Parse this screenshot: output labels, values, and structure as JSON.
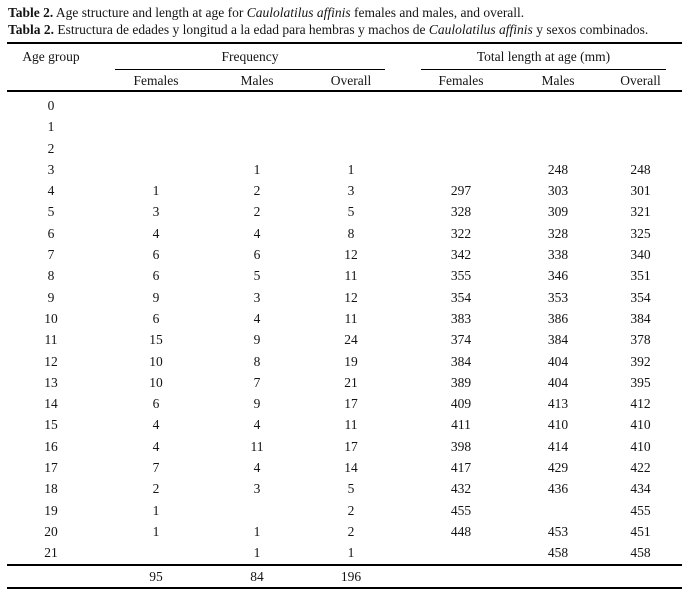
{
  "caption": {
    "en": {
      "label": "Table 2.",
      "before_species": " Age structure and length at age for ",
      "species": "Caulolatilus affinis",
      "after_species": " females and males, and overall."
    },
    "es": {
      "label": "Tabla 2.",
      "before_species": " Estructura de edades y longitud a la edad para hembras y machos de ",
      "species": "Caulolatilus affinis",
      "after_species": " y sexos combinados."
    }
  },
  "table": {
    "col_age_header": "Age group",
    "group_frequency": "Frequency",
    "group_length": "Total length at age (mm)",
    "subheaders": {
      "females": "Females",
      "males": "Males",
      "overall": "Overall"
    },
    "rows": [
      {
        "age": "0",
        "ff": "",
        "fm": "",
        "fo": "",
        "lf": "",
        "lm": "",
        "lo": ""
      },
      {
        "age": "1",
        "ff": "",
        "fm": "",
        "fo": "",
        "lf": "",
        "lm": "",
        "lo": ""
      },
      {
        "age": "2",
        "ff": "",
        "fm": "",
        "fo": "",
        "lf": "",
        "lm": "",
        "lo": ""
      },
      {
        "age": "3",
        "ff": "",
        "fm": "1",
        "fo": "1",
        "lf": "",
        "lm": "248",
        "lo": "248"
      },
      {
        "age": "4",
        "ff": "1",
        "fm": "2",
        "fo": "3",
        "lf": "297",
        "lm": "303",
        "lo": "301"
      },
      {
        "age": "5",
        "ff": "3",
        "fm": "2",
        "fo": "5",
        "lf": "328",
        "lm": "309",
        "lo": "321"
      },
      {
        "age": "6",
        "ff": "4",
        "fm": "4",
        "fo": "8",
        "lf": "322",
        "lm": "328",
        "lo": "325"
      },
      {
        "age": "7",
        "ff": "6",
        "fm": "6",
        "fo": "12",
        "lf": "342",
        "lm": "338",
        "lo": "340"
      },
      {
        "age": "8",
        "ff": "6",
        "fm": "5",
        "fo": "11",
        "lf": "355",
        "lm": "346",
        "lo": "351"
      },
      {
        "age": "9",
        "ff": "9",
        "fm": "3",
        "fo": "12",
        "lf": "354",
        "lm": "353",
        "lo": "354"
      },
      {
        "age": "10",
        "ff": "6",
        "fm": "4",
        "fo": "11",
        "lf": "383",
        "lm": "386",
        "lo": "384"
      },
      {
        "age": "11",
        "ff": "15",
        "fm": "9",
        "fo": "24",
        "lf": "374",
        "lm": "384",
        "lo": "378"
      },
      {
        "age": "12",
        "ff": "10",
        "fm": "8",
        "fo": "19",
        "lf": "384",
        "lm": "404",
        "lo": "392"
      },
      {
        "age": "13",
        "ff": "10",
        "fm": "7",
        "fo": "21",
        "lf": "389",
        "lm": "404",
        "lo": "395"
      },
      {
        "age": "14",
        "ff": "6",
        "fm": "9",
        "fo": "17",
        "lf": "409",
        "lm": "413",
        "lo": "412"
      },
      {
        "age": "15",
        "ff": "4",
        "fm": "4",
        "fo": "11",
        "lf": "411",
        "lm": "410",
        "lo": "410"
      },
      {
        "age": "16",
        "ff": "4",
        "fm": "11",
        "fo": "17",
        "lf": "398",
        "lm": "414",
        "lo": "410"
      },
      {
        "age": "17",
        "ff": "7",
        "fm": "4",
        "fo": "14",
        "lf": "417",
        "lm": "429",
        "lo": "422"
      },
      {
        "age": "18",
        "ff": "2",
        "fm": "3",
        "fo": "5",
        "lf": "432",
        "lm": "436",
        "lo": "434"
      },
      {
        "age": "19",
        "ff": "1",
        "fm": "",
        "fo": "2",
        "lf": "455",
        "lm": "",
        "lo": "455"
      },
      {
        "age": "20",
        "ff": "1",
        "fm": "1",
        "fo": "2",
        "lf": "448",
        "lm": "453",
        "lo": "451"
      },
      {
        "age": "21",
        "ff": "",
        "fm": "1",
        "fo": "1",
        "lf": "",
        "lm": "458",
        "lo": "458"
      }
    ],
    "totals": {
      "ff": "95",
      "fm": "84",
      "fo": "196"
    }
  }
}
